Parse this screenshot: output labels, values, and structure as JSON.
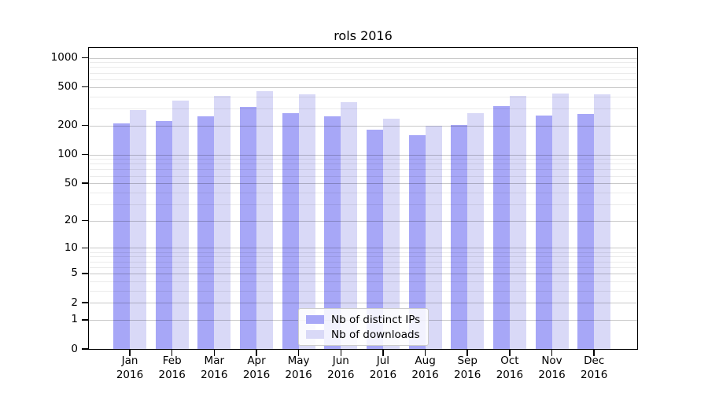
{
  "title": "rols 2016",
  "colors": {
    "bar_distinct_ips": "#a7a7f7",
    "bar_downloads": "#d9d9f7",
    "grid_major": "rgba(0,0,0,0.21)",
    "grid_minor": "rgba(0,0,0,0.08)",
    "axis": "#000000",
    "background": "#ffffff"
  },
  "legend": {
    "items": [
      {
        "label": "Nb of distinct IPs",
        "color": "#a7a7f7"
      },
      {
        "label": "Nb of downloads",
        "color": "#d9d9f7"
      }
    ]
  },
  "chart_data": {
    "type": "bar",
    "title": "rols 2016",
    "categories": [
      "Jan 2016",
      "Feb 2016",
      "Mar 2016",
      "Apr 2016",
      "May 2016",
      "Jun 2016",
      "Jul 2016",
      "Aug 2016",
      "Sep 2016",
      "Oct 2016",
      "Nov 2016",
      "Dec 2016"
    ],
    "series": [
      {
        "name": "Nb of distinct IPs",
        "values": [
          210,
          222,
          247,
          309,
          268,
          247,
          182,
          160,
          204,
          315,
          254,
          262
        ]
      },
      {
        "name": "Nb of downloads",
        "values": [
          290,
          362,
          402,
          455,
          420,
          346,
          237,
          197,
          267,
          402,
          425,
          417
        ]
      }
    ],
    "bar_colors": [
      "#a7a7f7",
      "#d9d9f7"
    ],
    "yscale": "log1p",
    "ylim": [
      0,
      1260
    ],
    "y_ticks": [
      1000,
      500,
      200,
      100,
      50,
      20,
      10,
      5,
      2,
      1,
      0
    ],
    "y_tick_labels": [
      "1000",
      "500",
      "200",
      "100",
      "50",
      "20",
      "10",
      "5",
      "2",
      "1",
      "0"
    ],
    "grid": "both",
    "grid_above_bars": true,
    "legend_position": "lower center",
    "xlabel": "",
    "ylabel": ""
  }
}
